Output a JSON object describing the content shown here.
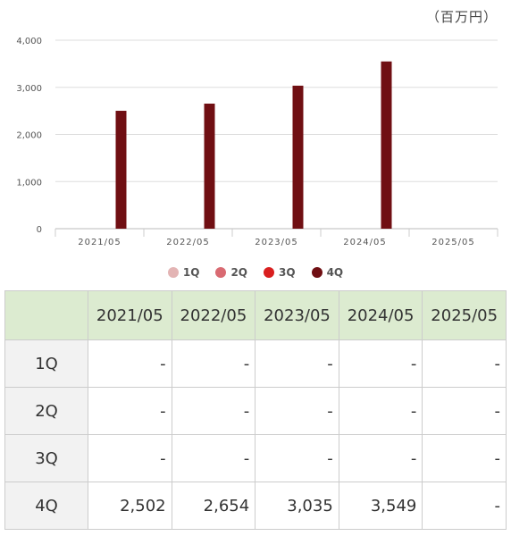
{
  "unit_label": "（百万円）",
  "colors": {
    "q1": "#e3b4b4",
    "q2": "#d96a72",
    "q3": "#d91f1f",
    "q4": "#700f13",
    "grid": "#dddddd",
    "header_bg": "#dcebd0"
  },
  "legend": [
    {
      "label": "1Q",
      "color": "#e3b4b4"
    },
    {
      "label": "2Q",
      "color": "#d96a72"
    },
    {
      "label": "3Q",
      "color": "#d91f1f"
    },
    {
      "label": "4Q",
      "color": "#700f13"
    }
  ],
  "chart_data": {
    "type": "bar",
    "categories": [
      "2021/05",
      "2022/05",
      "2023/05",
      "2024/05",
      "2025/05"
    ],
    "series": [
      {
        "name": "1Q",
        "values": [
          null,
          null,
          null,
          null,
          null
        ]
      },
      {
        "name": "2Q",
        "values": [
          null,
          null,
          null,
          null,
          null
        ]
      },
      {
        "name": "3Q",
        "values": [
          null,
          null,
          null,
          null,
          null
        ]
      },
      {
        "name": "4Q",
        "values": [
          2502,
          2654,
          3035,
          3549,
          null
        ]
      }
    ],
    "y_ticks": [
      "0",
      "1,000",
      "2,000",
      "3,000",
      "4,000"
    ],
    "ylim": [
      0,
      4000
    ],
    "grid": true,
    "legend_position": "bottom",
    "title": "",
    "xlabel": "",
    "ylabel": ""
  },
  "table": {
    "corner": "",
    "headers": [
      "2021/05",
      "2022/05",
      "2023/05",
      "2024/05",
      "2025/05"
    ],
    "rows": [
      {
        "label": "1Q",
        "cells": [
          "-",
          "-",
          "-",
          "-",
          "-"
        ]
      },
      {
        "label": "2Q",
        "cells": [
          "-",
          "-",
          "-",
          "-",
          "-"
        ]
      },
      {
        "label": "3Q",
        "cells": [
          "-",
          "-",
          "-",
          "-",
          "-"
        ]
      },
      {
        "label": "4Q",
        "cells": [
          "2,502",
          "2,654",
          "3,035",
          "3,549",
          "-"
        ]
      }
    ]
  }
}
